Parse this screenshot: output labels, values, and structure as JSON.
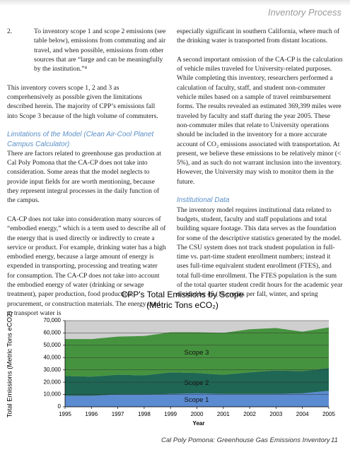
{
  "header": {
    "title": "Inventory Process"
  },
  "left_column": {
    "item": {
      "number": "2.",
      "text": "To inventory scope 1 and scope 2 emissions (see table below), emissions from commuting and air travel, and when possible, emissions from other sources that are “large and can be meaningfully by the institution.”⁴"
    },
    "paragraph_1": "This inventory covers scope 1, 2 and 3 as comprehensively as possible given the limitations described herein. The majority of CPP’s emissions fall into Scope 3 because of the high volume of commuters.",
    "heading": "Limitations of the Model (Clean Air-Cool Planet Campus Calculator)",
    "paragraph_2": "There are factors related to greenhouse gas production at Cal Poly Pomona that the CA-CP does not take into consideration. Some areas that the model neglects to provide input fields for are worth mentioning, because they represent integral processes in the daily function of the campus.",
    "paragraph_3": "CA-CP does not take into consideration many sources of “embodied energy,” which is a term used to describe all of the energy that is used directly or indirectly to create a service or product. For example, drinking water has a high embodied energy, because a large amount of energy is expended in transporting, processing and treating water for consumption. The CA-CP does not take into account the embodied energy of water (drinking or sewage treatment), paper production, food production, procurement, or construction materials. The energy used to transport water is"
  },
  "right_column": {
    "paragraph_1": "especially significant in southern California, where much of the drinking water is transported from distant locations.",
    "paragraph_2": "A second important omission of the CA-CP is the calculation of vehicle miles traveled for University-related purposes. While completing this inventory, researchers performed a calculation of faculty, staff, and student non-commuter vehicle miles based on a sample of travel reimbursement forms. The results revealed an estimated 369,399 miles were traveled by faculty and staff during the year 2005. These non-commuter miles that relate to University operations should be included in the inventory for a more accurate account of CO₂ emissions associated with transportation. At present, we believe these emissions to be relatively minor (< 5%), and as such do not warrant inclusion into the inventory. However, the University may wish to monitor them in the future.",
    "heading": "Institutional Data",
    "paragraph_3": "The inventory model requires institutional data related to budgets, student, faculty and staff populations and total building square footage. This data serves as the foundation for some of the descriptive statistics generated by the model. The CSU system does not track student population in full-time vs. part-time student enrollment numbers; instead it uses full-time equivalent student enrollment (FTES), and total full-time enrollment. The FTES population is the sum of the total quarter student credit hours for the academic year divided by 45 (15 credits per fall, winter, and spring"
  },
  "chart_data": {
    "type": "stacked_area",
    "title": "CPP's Total Emissions by Scope",
    "subtitle": "(Metric Tons eCO₂)",
    "y_label": "Total Emissions (Metric Tons eCO2)",
    "x_label": "Year",
    "x": [
      1995,
      1996,
      1997,
      1998,
      1999,
      2000,
      2001,
      2002,
      2003,
      2004,
      2005
    ],
    "xlim": [
      1995,
      2005
    ],
    "series": [
      {
        "name": "Scope 1",
        "color": "#5b8bd0",
        "values": [
          9000,
          9000,
          10000,
          10000,
          10500,
          11000,
          10500,
          10500,
          10500,
          11000,
          13000
        ]
      },
      {
        "name": "Scope 2",
        "color": "#1f6654",
        "values": [
          16000,
          15500,
          16000,
          15500,
          17500,
          16500,
          15500,
          17500,
          19000,
          18000,
          18500
        ]
      },
      {
        "name": "Scope 3",
        "color": "#46933f",
        "values": [
          30000,
          30500,
          31000,
          32000,
          32500,
          33000,
          34000,
          35000,
          34500,
          32000,
          33000
        ]
      }
    ],
    "ylim": [
      0,
      70000
    ],
    "yticks": [
      0,
      {
        "value": 10000,
        "label": "10,000"
      },
      {
        "value": 20000,
        "label": "20,000"
      },
      {
        "value": 30000,
        "label": "30,000"
      },
      {
        "value": 40000,
        "label": "40,000"
      },
      {
        "value": 50000,
        "label": "50,000"
      },
      {
        "value": 60000,
        "label": "60,000"
      },
      {
        "value": 70000,
        "label": "70,000"
      }
    ],
    "grid": true
  },
  "footer": {
    "title": "Cal Poly Pomona:  Greenhouse Gas Emissions Inventory",
    "page": "11"
  }
}
